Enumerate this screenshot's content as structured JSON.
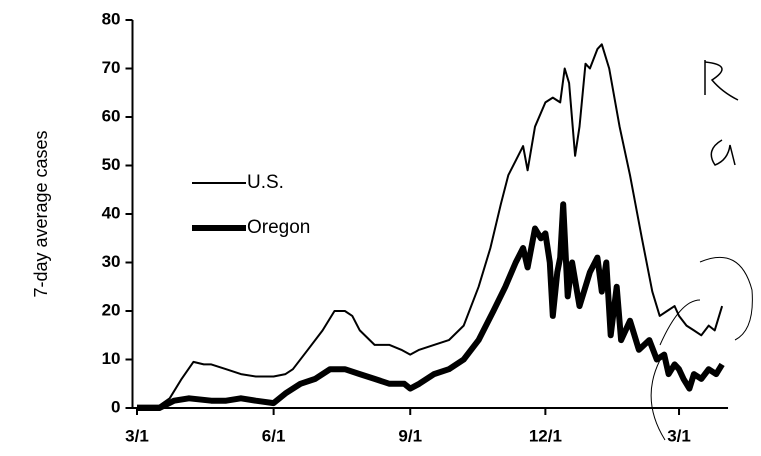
{
  "chart_data": {
    "type": "line",
    "y_label": "7-day average cases",
    "xlim": [
      -3,
      398
    ],
    "ylim": [
      0,
      80
    ],
    "xticks": [
      {
        "value": 0,
        "label": "3/1"
      },
      {
        "value": 92,
        "label": "6/1"
      },
      {
        "value": 184,
        "label": "9/1"
      },
      {
        "value": 275,
        "label": "12/1"
      },
      {
        "value": 365,
        "label": "3/1"
      }
    ],
    "yticks": [
      0,
      10,
      20,
      30,
      40,
      50,
      60,
      70,
      80
    ],
    "legend": "left",
    "series": [
      {
        "name": "U.S.",
        "color": "#000000",
        "width": 2,
        "x": [
          0,
          15,
          22,
          30,
          38,
          45,
          50,
          60,
          70,
          80,
          92,
          100,
          105,
          115,
          125,
          133,
          140,
          145,
          150,
          160,
          170,
          178,
          184,
          190,
          200,
          210,
          220,
          230,
          238,
          245,
          250,
          255,
          260,
          263,
          268,
          275,
          280,
          285,
          288,
          291,
          295,
          298,
          302,
          305,
          310,
          313,
          318,
          325,
          332,
          340,
          347,
          352,
          357,
          362,
          365,
          370,
          375,
          380,
          385,
          389,
          394
        ],
        "values": [
          0.5,
          0.5,
          2,
          6,
          9.5,
          9,
          9,
          8,
          7,
          6.5,
          6.5,
          7,
          8,
          12,
          16,
          20,
          20,
          19,
          16,
          13,
          13,
          12,
          11,
          12,
          13,
          14,
          17,
          25,
          33,
          42,
          48,
          51,
          54,
          49,
          58,
          63,
          64,
          63,
          70,
          67,
          52,
          58,
          71,
          70,
          74,
          75,
          70,
          58,
          48,
          35,
          24,
          19,
          20,
          21,
          19,
          17,
          16,
          15,
          17,
          16,
          21
        ]
      },
      {
        "name": "Oregon",
        "color": "#000000",
        "width": 6,
        "x": [
          0,
          15,
          25,
          35,
          50,
          60,
          70,
          80,
          92,
          100,
          110,
          120,
          130,
          140,
          150,
          160,
          170,
          180,
          184,
          190,
          200,
          210,
          220,
          230,
          240,
          248,
          255,
          260,
          263,
          268,
          272,
          275,
          278,
          280,
          283,
          285,
          287,
          290,
          293,
          298,
          305,
          310,
          313,
          316,
          319,
          323,
          326,
          332,
          338,
          345,
          350,
          355,
          358,
          362,
          365,
          368,
          372,
          375,
          380,
          385,
          390,
          394
        ],
        "values": [
          0,
          0,
          1.5,
          2,
          1.5,
          1.5,
          2,
          1.5,
          1,
          3,
          5,
          6,
          8,
          8,
          7,
          6,
          5,
          5,
          4,
          5,
          7,
          8,
          10,
          14,
          20,
          25,
          30,
          33,
          29,
          37,
          35,
          36,
          30,
          19,
          28,
          31,
          42,
          23,
          30,
          21,
          28,
          31,
          24,
          30,
          15,
          25,
          14,
          18,
          12,
          14,
          10,
          11,
          7,
          9,
          8,
          6,
          4,
          7,
          6,
          8,
          7,
          9
        ]
      }
    ]
  }
}
